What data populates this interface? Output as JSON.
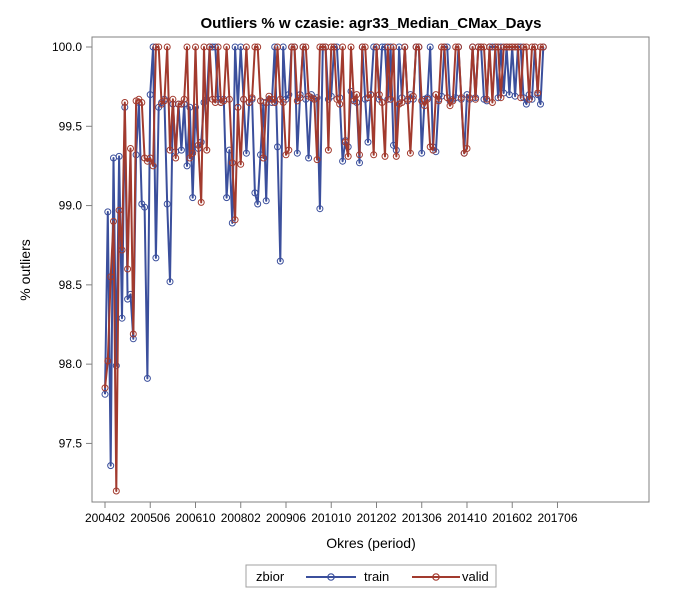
{
  "chart_data": {
    "type": "line",
    "title": "Outliers % w czasie: agr33_Median_CMax_Days",
    "xlabel": "Okres (period)",
    "ylabel": "% outliers",
    "ylim": [
      97.2,
      100.02
    ],
    "yticks": [
      97.5,
      98.0,
      98.5,
      99.0,
      99.5,
      100.0
    ],
    "ytick_labels": [
      "97.5",
      "98.0",
      "98.5",
      "99.0",
      "99.5",
      "100.0"
    ],
    "xticks": [
      "200402",
      "200506",
      "200610",
      "200802",
      "200906",
      "201010",
      "201202",
      "201306",
      "201410",
      "201602",
      "201706"
    ],
    "x_start": "200402",
    "legend": {
      "title": "zbior",
      "position": "bottom-center"
    },
    "grid": false,
    "series": [
      {
        "name": "train",
        "color": "#3b4f9c",
        "values": [
          97.81,
          98.96,
          97.36,
          99.3,
          97.99,
          99.31,
          98.29,
          99.62,
          98.41,
          98.44,
          98.16,
          99.32,
          99.65,
          99.01,
          98.99,
          97.91,
          99.7,
          100.0,
          98.67,
          99.62,
          99.65,
          99.67,
          99.01,
          98.52,
          99.64,
          99.34,
          99.64,
          99.35,
          99.64,
          99.25,
          99.62,
          99.05,
          99.62,
          99.36,
          99.4,
          99.65,
          99.67,
          100.0,
          100.0,
          100.0,
          99.67,
          99.65,
          99.67,
          99.05,
          99.35,
          98.89,
          100.0,
          99.62,
          100.0,
          99.67,
          99.33,
          99.65,
          99.67,
          99.08,
          99.01,
          99.32,
          99.65,
          99.03,
          99.67,
          99.65,
          100.0,
          99.37,
          98.65,
          100.0,
          99.67,
          99.7,
          100.0,
          100.0,
          99.33,
          99.7,
          100.0,
          99.67,
          99.3,
          99.7,
          99.67,
          99.68,
          98.98,
          100.0,
          100.0,
          99.67,
          99.69,
          100.0,
          100.0,
          99.68,
          99.28,
          99.41,
          99.37,
          99.72,
          99.67,
          99.65,
          99.27,
          100.0,
          99.67,
          99.4,
          99.7,
          100.0,
          100.0,
          99.67,
          100.0,
          100.0,
          99.67,
          100.0,
          99.38,
          99.35,
          100.0,
          99.68,
          100.0,
          99.66,
          99.7,
          99.67,
          100.0,
          100.0,
          99.33,
          99.67,
          99.68,
          100.0,
          99.37,
          99.34,
          99.67,
          99.69,
          100.0,
          100.0,
          99.66,
          99.67,
          99.68,
          100.0,
          99.67,
          99.33,
          99.7,
          99.67,
          100.0,
          99.68,
          100.0,
          100.0,
          99.67,
          99.66,
          100.0,
          100.0,
          100.0,
          99.68,
          100.0,
          99.71,
          100.0,
          99.7,
          100.0,
          99.69,
          100.0,
          100.0,
          99.68,
          99.64,
          99.7,
          99.67,
          100.0,
          99.7,
          99.64,
          100.0
        ]
      },
      {
        "name": "valid",
        "color": "#a23a2e",
        "values": [
          97.85,
          98.02,
          98.55,
          98.9,
          97.2,
          98.97,
          98.72,
          99.65,
          98.6,
          99.36,
          98.19,
          99.66,
          99.67,
          99.65,
          99.3,
          99.28,
          99.3,
          99.25,
          100.0,
          100.0,
          99.64,
          99.66,
          100.0,
          99.35,
          99.67,
          99.3,
          99.64,
          99.64,
          99.67,
          100.0,
          99.3,
          99.33,
          100.0,
          99.38,
          99.02,
          100.0,
          99.35,
          100.0,
          99.67,
          99.65,
          100.0,
          99.65,
          99.66,
          100.0,
          99.67,
          99.27,
          98.91,
          99.62,
          99.26,
          99.67,
          100.0,
          99.65,
          99.68,
          100.0,
          100.0,
          99.66,
          99.3,
          99.65,
          99.69,
          99.67,
          99.65,
          100.0,
          99.67,
          99.65,
          99.32,
          99.35,
          100.0,
          100.0,
          99.66,
          99.68,
          100.0,
          100.0,
          99.69,
          99.68,
          99.67,
          99.29,
          100.0,
          100.0,
          100.0,
          99.35,
          100.0,
          100.0,
          99.67,
          99.64,
          100.0,
          99.4,
          99.31,
          100.0,
          99.66,
          99.7,
          99.32,
          100.0,
          100.0,
          99.68,
          99.7,
          99.32,
          100.0,
          99.7,
          99.65,
          99.31,
          100.0,
          99.67,
          100.0,
          99.31,
          99.64,
          99.65,
          100.0,
          99.67,
          99.33,
          99.69,
          100.0,
          100.0,
          99.66,
          99.63,
          99.67,
          99.37,
          99.35,
          99.7,
          99.66,
          100.0,
          100.0,
          99.68,
          99.63,
          99.66,
          100.0,
          100.0,
          99.68,
          99.33,
          99.36,
          99.68,
          100.0,
          99.67,
          100.0,
          100.0,
          100.0,
          99.67,
          100.0,
          99.65,
          100.0,
          100.0,
          99.68,
          100.0,
          100.0,
          100.0,
          100.0,
          100.0,
          100.0,
          99.68,
          100.0,
          100.0,
          99.67,
          100.0,
          100.0,
          99.71,
          100.0,
          100.0
        ]
      }
    ]
  }
}
